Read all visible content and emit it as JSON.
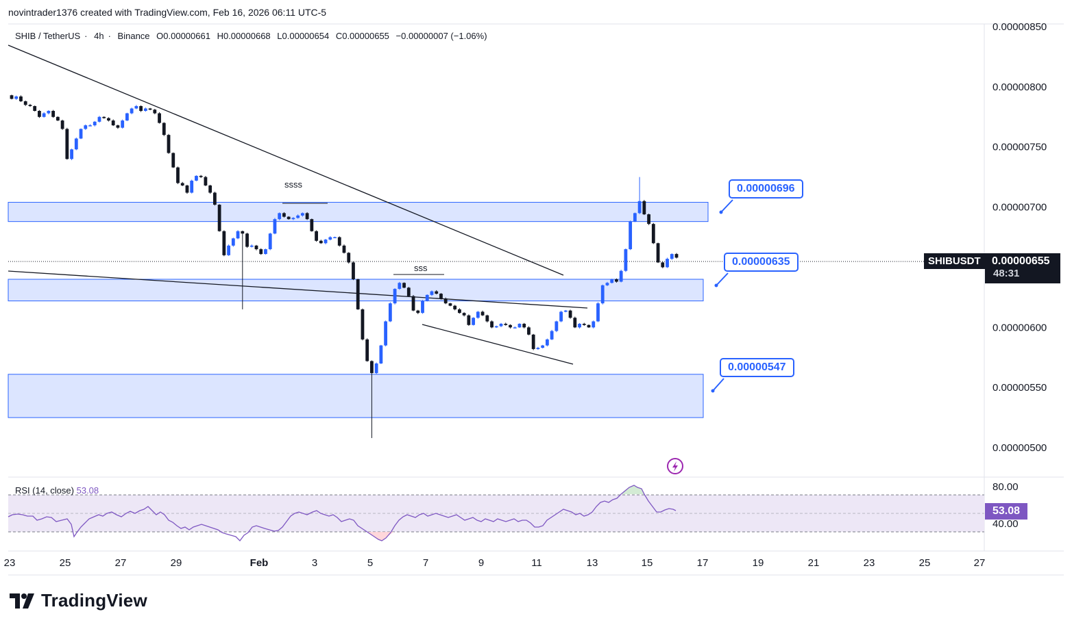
{
  "header": {
    "attribution": "novintrader1376 created with TradingView.com, Feb 16, 2026 06:11 UTC-5"
  },
  "symbol_line": {
    "pair": "SHIB / TetherUS",
    "interval": "4h",
    "exchange": "Binance",
    "open": "O0.00000661",
    "high": "H0.00000668",
    "low": "L0.00000654",
    "close": "C0.00000655",
    "change": "−0.00000007 (−1.06%)"
  },
  "annotations": {
    "ssss": "ssss",
    "sss": "sss"
  },
  "callouts": {
    "upper": "0.00000696",
    "middle": "0.00000635",
    "lower": "0.00000547"
  },
  "ticker_tag": {
    "symbol": "SHIBUSDT",
    "price": "0.00000655",
    "countdown": "48:31"
  },
  "rsi": {
    "legend_name": "RSI (14, close)",
    "legend_value": "53.08",
    "tag": "53.08"
  },
  "branding": {
    "logo_text": "TradingView"
  },
  "colors": {
    "up": "#2962ff",
    "down": "#131722",
    "zone_fill": "#d6e0ff",
    "zone_stroke": "#2962ff",
    "rsi_line": "#7e57c2",
    "rsi_band": "#ede7f6"
  },
  "chart_data": {
    "type": "candlestick",
    "symbol": "SHIBUSDT",
    "interval": "4h",
    "y_axis": {
      "ticks": [
        "0.00000850",
        "0.00000800",
        "0.00000750",
        "0.00000700",
        "0.00000600",
        "0.00000550",
        "0.00000500"
      ],
      "range": [
        4.8e-06,
        8.55e-06
      ]
    },
    "x_axis": {
      "ticks": [
        "23",
        "25",
        "27",
        "29",
        "Feb",
        "3",
        "5",
        "7",
        "9",
        "11",
        "13",
        "15",
        "17",
        "19",
        "21",
        "23",
        "25",
        "27"
      ]
    },
    "zones": [
      {
        "name": "resistance",
        "low": 6.88e-06,
        "high": 7.04e-06
      },
      {
        "name": "support-mid",
        "low": 6.22e-06,
        "high": 6.4e-06
      },
      {
        "name": "support-low",
        "low": 5.25e-06,
        "high": 5.61e-06
      }
    ],
    "last_price": 6.55e-06,
    "candles_mid": [
      7.9e-06,
      7.92e-06,
      7.88e-06,
      7.85e-06,
      7.84e-06,
      7.8e-06,
      7.75e-06,
      7.78e-06,
      7.8e-06,
      7.75e-06,
      7.72e-06,
      7.65e-06,
      7.4e-06,
      7.48e-06,
      7.57e-06,
      7.65e-06,
      7.68e-06,
      7.68e-06,
      7.71e-06,
      7.75e-06,
      7.74e-06,
      7.72e-06,
      7.68e-06,
      7.66e-06,
      7.72e-06,
      7.78e-06,
      7.82e-06,
      7.84e-06,
      7.8e-06,
      7.82e-06,
      7.81e-06,
      7.78e-06,
      7.7e-06,
      7.6e-06,
      7.45e-06,
      7.33e-06,
      7.2e-06,
      7.18e-06,
      7.12e-06,
      7.22e-06,
      7.26e-06,
      7.25e-06,
      7.18e-06,
      7.12e-06,
      7.02e-06,
      6.8e-06,
      6.6e-06,
      6.68e-06,
      6.74e-06,
      6.8e-06,
      6.78e-06,
      6.67e-06,
      6.68e-06,
      6.65e-06,
      6.61e-06,
      6.65e-06,
      6.78e-06,
      6.9e-06,
      6.95e-06,
      6.92e-06,
      6.9e-06,
      6.91e-06,
      6.93e-06,
      6.95e-06,
      6.9e-06,
      6.8e-06,
      6.72e-06,
      6.7e-06,
      6.73e-06,
      6.75e-06,
      6.75e-06,
      6.68e-06,
      6.62e-06,
      6.54e-06,
      6.4e-06,
      6.15e-06,
      5.9e-06,
      5.72e-06,
      5.62e-06,
      5.7e-06,
      5.85e-06,
      6.05e-06,
      6.2e-06,
      6.32e-06,
      6.37e-06,
      6.33e-06,
      6.26e-06,
      6.14e-06,
      6.12e-06,
      6.22e-06,
      6.27e-06,
      6.3e-06,
      6.28e-06,
      6.24e-06,
      6.2e-06,
      6.18e-06,
      6.15e-06,
      6.12e-06,
      6.1e-06,
      6.02e-06,
      6.08e-06,
      6.13e-06,
      6.1e-06,
      6.05e-06,
      6e-06,
      6.01e-06,
      6.03e-06,
      6.02e-06,
      6e-06,
      6e-06,
      6.03e-06,
      6e-06,
      5.94e-06,
      5.82e-06,
      5.83e-06,
      5.85e-06,
      5.9e-06,
      5.97e-06,
      6.05e-06,
      6.13e-06,
      6.14e-06,
      6.08e-06,
      6e-06,
      6.03e-06,
      6.02e-06,
      6e-06,
      6.05e-06,
      6.2e-06,
      6.35e-06,
      6.37e-06,
      6.4e-06,
      6.38e-06,
      6.47e-06,
      6.65e-06,
      6.88e-06,
      6.95e-06,
      7.05e-06,
      6.94e-06,
      6.86e-06,
      6.7e-06,
      6.54e-06,
      6.5e-06,
      6.57e-06,
      6.61e-06,
      6.58e-06
    ],
    "rsi": {
      "levels": [
        80,
        40
      ],
      "mid": 53.08,
      "last": 53.08
    }
  }
}
